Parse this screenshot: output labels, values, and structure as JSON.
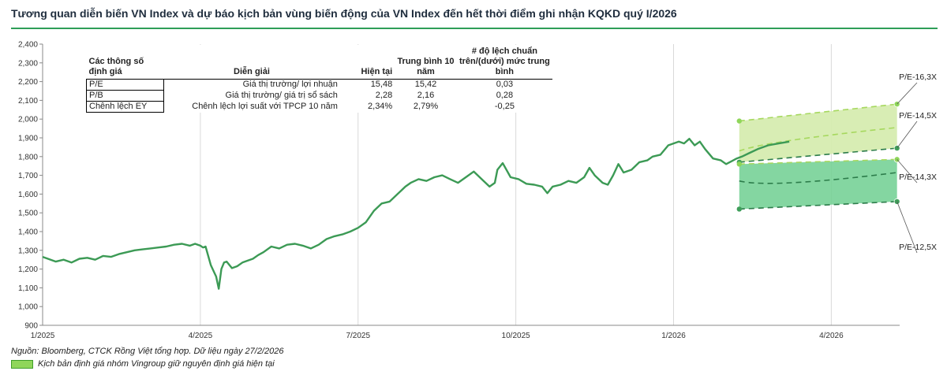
{
  "title": "Tương quan diễn biến VN Index và dự báo kịch bản vùng biến động của VN Index đến hết thời điểm ghi nhận KQKD quý I/2026",
  "source": "Nguồn: Bloomberg, CTCK Rồng Việt tổng hợp. Dữ liệu ngày 27/2/2026",
  "legend": {
    "label": "Kịch bản định giá nhóm Vingroup giữ nguyên định giá hiện tại",
    "color": "#8fd65a"
  },
  "table": {
    "headers": [
      "Các thông số định giá",
      "Diễn giải",
      "Hiện tại",
      "Trung bình 10 năm",
      "# độ lệch chuẩn trên/(dưới) mức trung bình"
    ],
    "rows": [
      [
        "P/E",
        "Giá thị trường/ lợi nhuận",
        "15,48",
        "15,42",
        "0,03"
      ],
      [
        "P/B",
        "Giá thị trường/ giá trị sổ sách",
        "2,28",
        "2,16",
        "0,28"
      ],
      [
        "Chênh lệch EY",
        "Chênh lệch lợi suất với TPCP 10 năm",
        "2,34%",
        "2,79%",
        "-0,25"
      ]
    ]
  },
  "chart_data": {
    "type": "line",
    "ylim": [
      900,
      2400
    ],
    "yticks": [
      "2,400",
      "2,300",
      "2,200",
      "2,100",
      "2,000",
      "1,900",
      "1,800",
      "1,700",
      "1,600",
      "1,500",
      "1,400",
      "1,300",
      "1,200",
      "1,100",
      "1,000",
      "900"
    ],
    "xticks": [
      "1/2025",
      "4/2025",
      "7/2025",
      "10/2025",
      "1/2026",
      "4/2026"
    ],
    "xlim_months": [
      0,
      16.3
    ],
    "grid": "vertical",
    "line_color": "#3c9a55",
    "series": [
      {
        "x": [
          0,
          0.1,
          0.25,
          0.4,
          0.55,
          0.7,
          0.85,
          1.0,
          1.15,
          1.3,
          1.45,
          1.6,
          1.75,
          1.9,
          2.05,
          2.2,
          2.35,
          2.5,
          2.65,
          2.8,
          2.9,
          3.0,
          3.05,
          3.1,
          3.2,
          3.3,
          3.35,
          3.4,
          3.45,
          3.5,
          3.6,
          3.7,
          3.8,
          3.9,
          4.0,
          4.1,
          4.2,
          4.35,
          4.5,
          4.65,
          4.8,
          4.95,
          5.1,
          5.25,
          5.4,
          5.55,
          5.7,
          5.85,
          6.0,
          6.15,
          6.3,
          6.45,
          6.6,
          6.75,
          6.9,
          7.0,
          7.15,
          7.3,
          7.45,
          7.6,
          7.75,
          7.9,
          8.05,
          8.2,
          8.35,
          8.5,
          8.6,
          8.65,
          8.75,
          8.9,
          9.05,
          9.2,
          9.35,
          9.5,
          9.6,
          9.7,
          9.85,
          10.0,
          10.15,
          10.3,
          10.4,
          10.5,
          10.65,
          10.75,
          10.85,
          10.95,
          11.05,
          11.2,
          11.35,
          11.5,
          11.6,
          11.75,
          11.9,
          12.0,
          12.1,
          12.2,
          12.3,
          12.4,
          12.5,
          12.6,
          12.75,
          12.9,
          13.0,
          13.1,
          13.2,
          13.3,
          13.45,
          13.6,
          13.8,
          14.0,
          14.2
        ],
        "y": [
          1265,
          1255,
          1240,
          1250,
          1235,
          1255,
          1260,
          1250,
          1270,
          1265,
          1280,
          1290,
          1300,
          1305,
          1310,
          1315,
          1320,
          1330,
          1335,
          1325,
          1335,
          1325,
          1315,
          1320,
          1220,
          1160,
          1095,
          1200,
          1235,
          1240,
          1205,
          1215,
          1235,
          1245,
          1255,
          1275,
          1290,
          1320,
          1310,
          1330,
          1335,
          1325,
          1310,
          1330,
          1360,
          1375,
          1385,
          1400,
          1420,
          1450,
          1510,
          1550,
          1560,
          1600,
          1640,
          1660,
          1680,
          1670,
          1690,
          1700,
          1680,
          1660,
          1690,
          1720,
          1680,
          1640,
          1660,
          1730,
          1765,
          1690,
          1680,
          1655,
          1650,
          1640,
          1605,
          1640,
          1650,
          1670,
          1660,
          1690,
          1740,
          1700,
          1660,
          1650,
          1700,
          1760,
          1715,
          1730,
          1770,
          1780,
          1800,
          1810,
          1860,
          1870,
          1880,
          1870,
          1895,
          1860,
          1880,
          1840,
          1790,
          1780,
          1760,
          1775,
          1790,
          1800,
          1820,
          1840,
          1860,
          1870,
          1880
        ]
      }
    ],
    "scenarios": [
      {
        "label": "P/E-16,3X",
        "start": 1990,
        "end": 2080
      },
      {
        "label": "P/E-14,5X",
        "start": 1770,
        "end": 1845
      },
      {
        "label": "P/E-14,3X",
        "start": 1760,
        "end": 1785
      },
      {
        "label": "P/E-12,5X",
        "start": 1520,
        "end": 1560
      }
    ],
    "scenario_x": [
      13.25,
      16.25
    ],
    "band_colors": [
      "#d6ecb0",
      "#6fcf90"
    ]
  }
}
